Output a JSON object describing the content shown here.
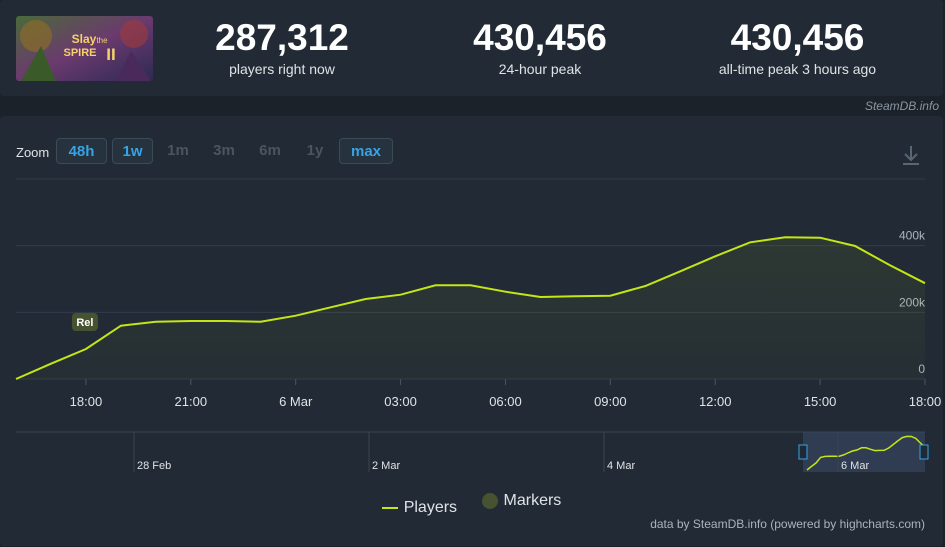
{
  "game": {
    "banner_title": "Slay the Spire II",
    "banner_line1": "Slay",
    "banner_line2": "the",
    "banner_line3": "SPIRE",
    "banner_numeral": "II"
  },
  "stats": [
    {
      "value": "287,312",
      "label": "players right now"
    },
    {
      "value": "430,456",
      "label": "24-hour peak"
    },
    {
      "value": "430,456",
      "label": "all-time peak 3 hours ago"
    }
  ],
  "credit": "SteamDB.info",
  "zoom": {
    "label": "Zoom",
    "options": [
      {
        "label": "48h",
        "active": true
      },
      {
        "label": "1w",
        "active": true
      },
      {
        "label": "1m",
        "active": false
      },
      {
        "label": "3m",
        "active": false
      },
      {
        "label": "6m",
        "active": false
      },
      {
        "label": "1y",
        "active": false
      },
      {
        "label": "max",
        "active": true
      }
    ]
  },
  "download_icon": "download-icon",
  "chart_data": {
    "type": "line",
    "series": [
      {
        "name": "Players",
        "color": "#c4e616",
        "x": [
          "16:00",
          "17:00",
          "18:00",
          "19:00",
          "20:00",
          "21:00",
          "22:00",
          "23:00",
          "00:00",
          "01:00",
          "02:00",
          "03:00",
          "04:00",
          "05:00",
          "06:00",
          "07:00",
          "08:00",
          "09:00",
          "10:00",
          "11:00",
          "12:00",
          "13:00",
          "14:00",
          "15:00",
          "16:00",
          "17:00",
          "18:00"
        ],
        "values": [
          0,
          46000,
          90000,
          160000,
          172000,
          174000,
          174000,
          172000,
          190000,
          215000,
          240000,
          253000,
          281000,
          281000,
          262000,
          246000,
          248000,
          250000,
          279000,
          323000,
          368000,
          410000,
          425000,
          424000,
          399000,
          341000,
          287312
        ]
      }
    ],
    "x_tick_labels": [
      "18:00",
      "21:00",
      "6 Mar",
      "03:00",
      "06:00",
      "09:00",
      "12:00",
      "15:00",
      "18:00"
    ],
    "y_tick_labels": [
      "0",
      "200k",
      "400k"
    ],
    "ylim": [
      0,
      600000
    ],
    "grid": true,
    "markers": [
      {
        "label": "Rel",
        "x": "18:00"
      }
    ],
    "navigator_labels": [
      "28 Feb",
      "2 Mar",
      "4 Mar",
      "6 Mar"
    ],
    "legend": [
      {
        "label": "Players",
        "color": "#c4e616"
      },
      {
        "label": "Markers",
        "color": "#465230"
      }
    ],
    "legend_position": "bottom"
  },
  "footer": "data by SteamDB.info (powered by highcharts.com)"
}
